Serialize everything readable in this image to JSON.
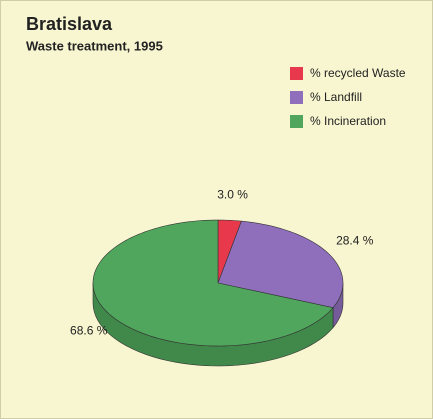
{
  "chart_data": {
    "type": "pie",
    "title": "Bratislava",
    "subtitle": "Waste treatment, 1995",
    "categories": [
      "% recycled Waste",
      "% Landfill",
      "% Incineration"
    ],
    "values": [
      3.0,
      28.4,
      68.6
    ],
    "value_labels": [
      "3.0 %",
      "28.4 %",
      "68.6 %"
    ],
    "colors": [
      "#e8384c",
      "#8f6fbb",
      "#4fa65c"
    ],
    "legend": "top-right"
  }
}
